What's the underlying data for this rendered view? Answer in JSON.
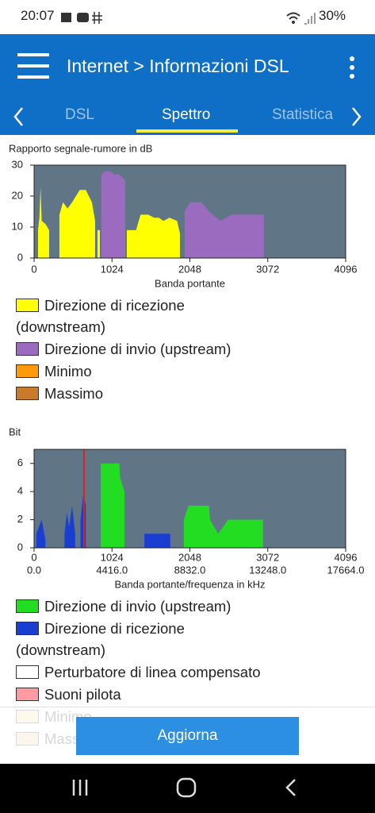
{
  "status_bar": {
    "time": "20:07",
    "battery": "30%"
  },
  "app_bar": {
    "title": "Internet > Informazioni DSL"
  },
  "tabs": [
    "DSL",
    "Spettro",
    "Statistica"
  ],
  "button": "Aggiorna",
  "chart_data": [
    {
      "type": "area",
      "y_label": "Rapporto segnale-rumore in dB",
      "x_label": "Banda portante",
      "xlim": [
        0,
        4096
      ],
      "xticks": [
        0,
        1024,
        2048,
        3072,
        4096
      ],
      "ylim": [
        0,
        30
      ],
      "yticks": [
        0,
        10,
        20,
        30
      ],
      "background": "#607686",
      "series": [
        {
          "name": "Direzione di ricezione (downstream)",
          "color": "#ffff00",
          "x": [
            52,
            70,
            85,
            100,
            150,
            198,
            200,
            333,
            380,
            440,
            500,
            600,
            680,
            720,
            760,
            802,
            810,
            833,
            865,
            870,
            1219,
            1340,
            1400,
            1500,
            1580,
            1640,
            1700,
            1780,
            1880,
            1917
          ],
          "values": [
            9,
            13,
            23,
            12,
            11,
            9,
            null,
            14,
            18,
            16,
            18,
            22,
            22,
            20,
            18,
            12,
            null,
            9,
            9,
            null,
            9,
            9,
            14,
            14,
            13,
            13,
            12,
            13,
            12,
            8
          ]
        },
        {
          "name": "Direzione di invio (upstream)",
          "color": "#9b6bc0",
          "x": [
            885,
            930,
            1000,
            1060,
            1120,
            1198,
            1200,
            1979,
            2050,
            2200,
            2300,
            2450,
            2600,
            2800,
            3021
          ],
          "values": [
            27,
            28,
            28,
            27,
            27,
            25,
            null,
            15,
            18,
            18,
            15,
            12,
            14,
            14,
            14
          ]
        },
        {
          "name": "Minimo",
          "color": "#ff9a0a",
          "x": [],
          "values": []
        },
        {
          "name": "Massimo",
          "color": "#c97a2a",
          "x": [],
          "values": []
        }
      ]
    },
    {
      "type": "area",
      "y_label": "Bit",
      "x_label": "Banda portante/frequenza in kHz",
      "xlim": [
        0,
        4096
      ],
      "xticks": [
        0,
        1024,
        2048,
        3072,
        4096
      ],
      "frequency_ticks": [
        "0.0",
        "4416.0",
        "8832.0",
        "13248.0",
        "17664.0"
      ],
      "ylim": [
        0,
        7
      ],
      "yticks": [
        0,
        2,
        4,
        6
      ],
      "background": "#607686",
      "marker_x": 656,
      "marker_color": "#e02020",
      "series": [
        {
          "name": "Direzione di invio (upstream)",
          "color": "#22dd22",
          "x": [
            875,
            1120,
            1130,
            1188,
            1190,
            1969,
            2030,
            2300,
            2313,
            2420,
            2550,
            2700,
            3010
          ],
          "values": [
            6,
            6,
            5,
            4,
            null,
            2,
            3,
            3,
            2,
            1,
            2,
            2,
            2
          ]
        },
        {
          "name": "Direzione di ricezione (downstream)",
          "color": "#1a3fd0",
          "x": [
            30,
            100,
            150,
            200,
            400,
            430,
            460,
            500,
            540,
            560,
            610,
            650,
            680,
            720,
            1450,
            1700,
            1790
          ],
          "values": [
            1,
            2,
            0.5,
            null,
            1,
            2.5,
            1.5,
            3,
            1,
            null,
            2,
            4,
            3,
            null,
            1,
            1,
            1
          ]
        },
        {
          "name": "Perturbatore di linea compensato",
          "color": "#ffffff",
          "x": [],
          "values": []
        },
        {
          "name": "Suoni pilota",
          "color": "#ff9aa2",
          "x": [],
          "values": []
        },
        {
          "name": "Minimo",
          "color": "#ffd59a",
          "x": [],
          "values": []
        },
        {
          "name": "Massimo",
          "color": "#e7c8a0",
          "x": [],
          "values": []
        }
      ]
    }
  ]
}
